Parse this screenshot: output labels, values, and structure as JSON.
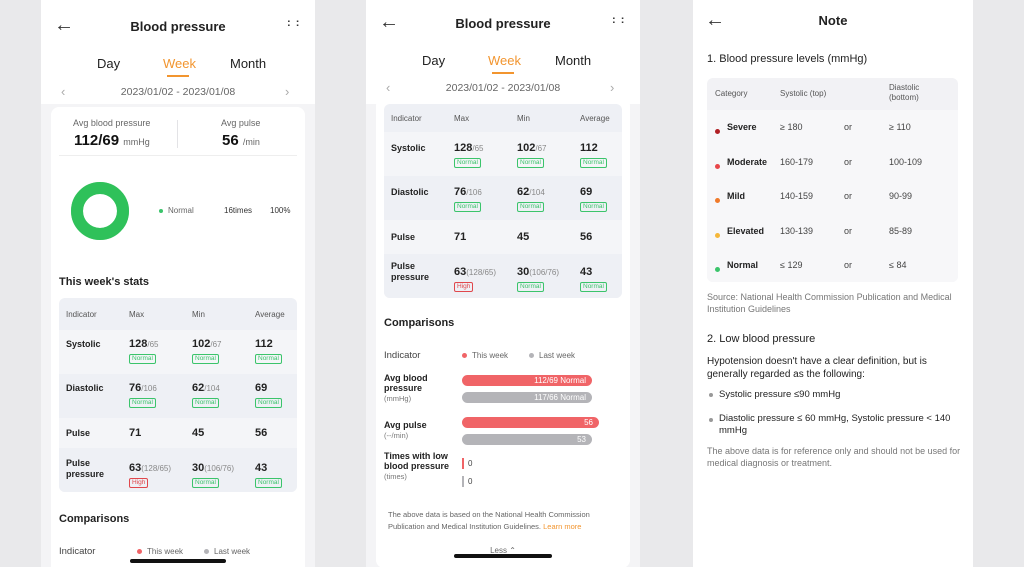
{
  "screen1": {
    "title": "Blood pressure",
    "tabs": [
      "Day",
      "Week",
      "Month"
    ],
    "active_tab": "Week",
    "date_range": "2023/01/02 - 2023/01/08",
    "avg_bp_label": "Avg blood pressure",
    "avg_bp_value": "112/69",
    "avg_bp_unit": "mmHg",
    "avg_pulse_label": "Avg pulse",
    "avg_pulse_value": "56",
    "avg_pulse_unit": "/min",
    "donut": {
      "legend_label": "Normal",
      "times": "16times",
      "percent": "100%",
      "fraction_normal": 1.0
    },
    "stats_title": "This week's stats",
    "headers": [
      "Indicator",
      "Max",
      "Min",
      "Average"
    ],
    "rows": [
      {
        "name": "Systolic",
        "max": "128",
        "max_ref": "/65",
        "max_tag": "Normal",
        "min": "102",
        "min_ref": "/67",
        "min_tag": "Normal",
        "avg": "112",
        "avg_tag": "Normal"
      },
      {
        "name": "Diastolic",
        "max": "76",
        "max_ref": "/106",
        "max_tag": "Normal",
        "min": "62",
        "min_ref": "/104",
        "min_tag": "Normal",
        "avg": "69",
        "avg_tag": "Normal"
      },
      {
        "name": "Pulse",
        "max": "71",
        "min": "45",
        "avg": "56"
      },
      {
        "name": "Pulse pressure",
        "max": "63",
        "max_ref": "(128/65)",
        "max_tag": "High",
        "min": "30",
        "min_ref": "(106/76)",
        "min_tag": "Normal",
        "avg": "43",
        "avg_tag": "Normal"
      }
    ],
    "comparisons_title": "Comparisons",
    "indicator_label": "Indicator",
    "this_week": "This week",
    "last_week": "Last week"
  },
  "screen2": {
    "title": "Blood pressure",
    "tabs": [
      "Day",
      "Week",
      "Month"
    ],
    "active_tab": "Week",
    "date_range": "2023/01/02 - 2023/01/08",
    "comparisons_title": "Comparisons",
    "indicator_label": "Indicator",
    "this_week": "This week",
    "last_week": "Last week",
    "cmp": [
      {
        "label": "Avg blood pressure",
        "unit": "(mmHg)",
        "this_text": "112/69  Normal",
        "last_text": "117/66  Normal",
        "this_frac": 0.9,
        "last_frac": 0.9
      },
      {
        "label": "Avg pulse",
        "unit": "(--/min)",
        "this_text": "56",
        "last_text": "53",
        "this_frac": 0.95,
        "last_frac": 0.9
      },
      {
        "label": "Times with low blood pressure",
        "unit": "(times)",
        "this_text": "0",
        "last_text": "0",
        "this_frac": 0.0,
        "last_frac": 0.0
      }
    ],
    "footnote_text": "The above data is based on the National Health Commission Publication and Medical Institution Guidelines.",
    "learn_more": "Learn more",
    "less": "Less"
  },
  "note": {
    "title": "Note",
    "s1_title": "1. Blood pressure levels (mmHg)",
    "headers": {
      "category": "Category",
      "systolic": "Systolic (top)",
      "diastolic": "Diastolic (bottom)"
    },
    "levels": [
      {
        "cat": "Severe",
        "color": "#b01f24",
        "sys": "≥ 180",
        "or": "or",
        "dia": "≥ 110"
      },
      {
        "cat": "Moderate",
        "color": "#e8464a",
        "sys": "160-179",
        "or": "or",
        "dia": "100-109"
      },
      {
        "cat": "Mild",
        "color": "#f07a2a",
        "sys": "140-159",
        "or": "or",
        "dia": "90-99"
      },
      {
        "cat": "Elevated",
        "color": "#f5b73a",
        "sys": "130-139",
        "or": "or",
        "dia": "85-89"
      },
      {
        "cat": "Normal",
        "color": "#3bc46b",
        "sys": "≤ 129",
        "or": "or",
        "dia": "≤ 84"
      }
    ],
    "source": "Source: National Health Commission Publication and Medical Institution Guidelines",
    "s2_title": "2. Low blood pressure",
    "s2_intro": "Hypotension doesn't have a clear definition, but is generally regarded as the following:",
    "bullets": [
      "Systolic pressure ≤90 mmHg",
      "Diastolic pressure ≤ 60 mmHg, Systolic pressure < 140 mmHg"
    ],
    "disclaimer": "The above data is for reference only and should not be used for medical diagnosis or treatment."
  },
  "colors": {
    "accent": "#f2952f",
    "this_week": "#f06467",
    "last_week": "#b4b4b8",
    "normal": "#3bc46b",
    "high": "#e0474c"
  },
  "icons": {
    "back": "back-arrow-icon",
    "more": "more-grid-icon"
  }
}
